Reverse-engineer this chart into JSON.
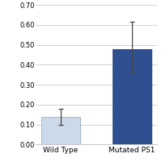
{
  "categories": [
    "Wild Type",
    "Mutated PS1"
  ],
  "values": [
    0.14,
    0.48
  ],
  "errors_upper": [
    0.04,
    0.135
  ],
  "errors_lower": [
    0.04,
    0.115
  ],
  "bar_colors": [
    "#ccd9e8",
    "#2e5090"
  ],
  "bar_edge_colors": [
    "#9ab0c8",
    "#223d7a"
  ],
  "ylim": [
    0.0,
    0.7
  ],
  "yticks": [
    0.0,
    0.1,
    0.2,
    0.3,
    0.4,
    0.5,
    0.6,
    0.7
  ],
  "grid_color": "#cccccc",
  "background_color": "#ffffff",
  "label_fontsize": 6.5,
  "tick_fontsize": 6.0,
  "bar_width": 0.55,
  "error_cap_size": 2.5,
  "error_linewidth": 0.9,
  "error_color": "#444444"
}
